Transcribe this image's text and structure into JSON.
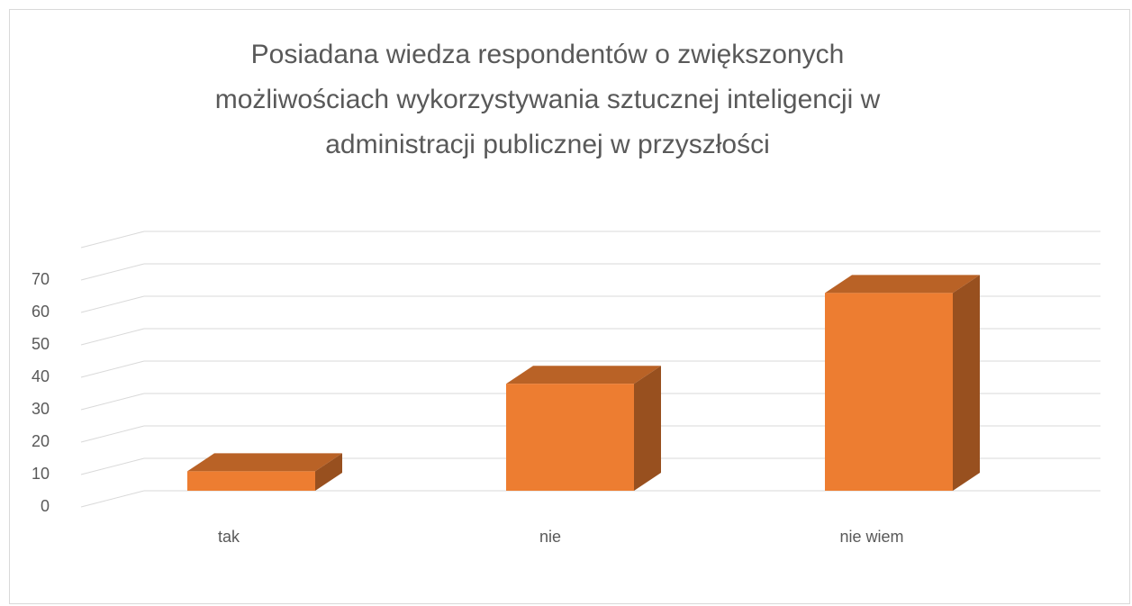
{
  "chart_data": {
    "type": "bar3d",
    "title": "Posiadana wiedza respondentów o zwiększonych możliwościach wykorzystywania sztucznej inteligencji w administracji publicznej w przyszłości",
    "categories": [
      "tak",
      "nie",
      "nie wiem"
    ],
    "values": [
      6,
      33,
      61
    ],
    "color": "#ed7d31",
    "ylim": [
      0,
      80
    ],
    "yticks": [
      0,
      10,
      20,
      30,
      40,
      50,
      60,
      70
    ],
    "grid": true
  }
}
